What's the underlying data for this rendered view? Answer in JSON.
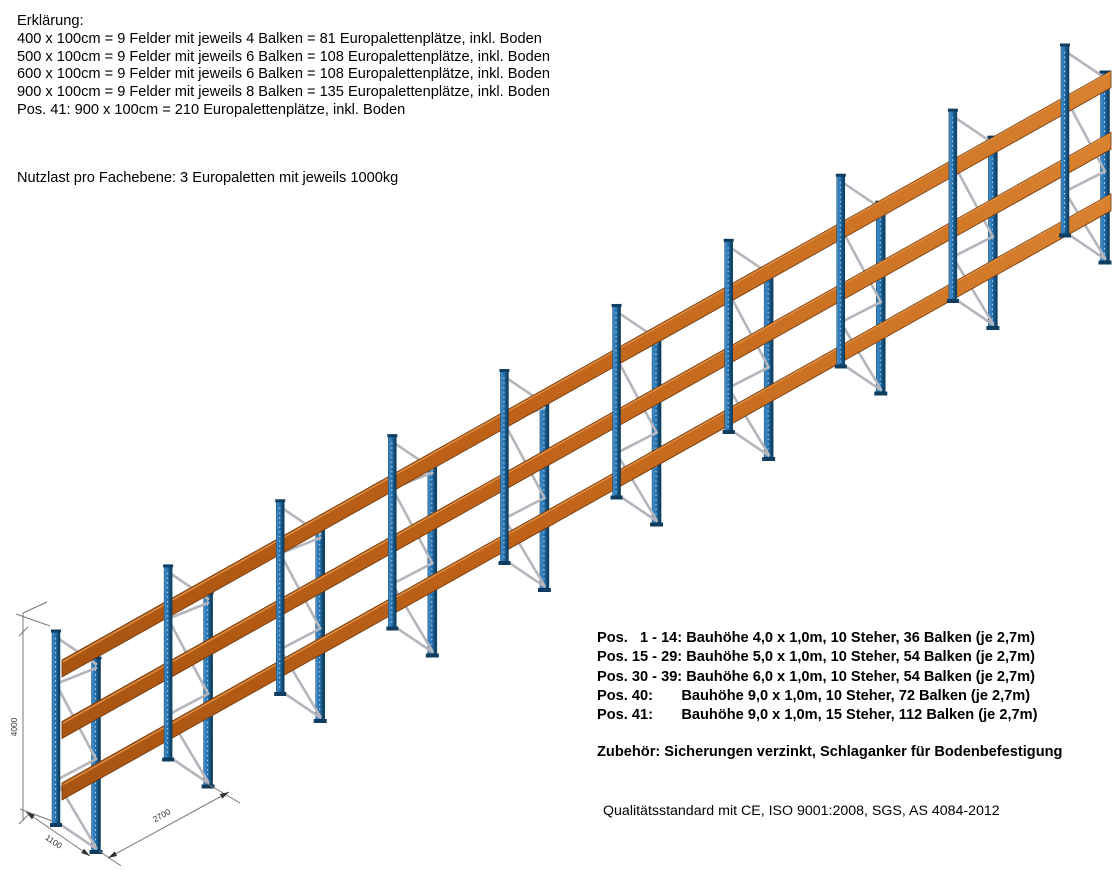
{
  "legend": {
    "title": "Erklärung:",
    "lines": [
      "400 x 100cm = 9 Felder mit jeweils 4 Balken = 81 Europalettenplätze, inkl. Boden",
      "500 x 100cm = 9 Felder mit jeweils 6 Balken = 108 Europalettenplätze, inkl. Boden",
      "600 x 100cm = 9 Felder mit jeweils 6 Balken = 108 Europalettenplätze, inkl. Boden",
      "900 x 100cm = 9 Felder mit jeweils 8 Balken = 135 Europalettenplätze, inkl. Boden",
      "Pos. 41: 900 x 100cm = 210 Europalettenplätze, inkl. Boden"
    ],
    "payload_note": "Nutzlast pro Fachebene: 3 Europaletten mit jeweils 1000kg"
  },
  "positions": {
    "lines": [
      "Pos.   1 - 14: Bauhöhe 4,0 x 1,0m, 10 Steher, 36 Balken (je 2,7m)",
      "Pos. 15 - 29: Bauhöhe 5,0 x 1,0m, 10 Steher, 54 Balken (je 2,7m)",
      "Pos. 30 - 39: Bauhöhe 6,0 x 1,0m, 10 Steher, 54 Balken (je 2,7m)",
      "Pos. 40:       Bauhöhe 9,0 x 1,0m, 10 Steher, 72 Balken (je 2,7m)",
      "Pos. 41:       Bauhöhe 9,0 x 1,0m, 15 Steher, 112 Balken (je 2,7m)"
    ],
    "accessories_note": "Zubehör: Sicherungen verzinkt, Schlaganker für Bodenbefestigung",
    "quality_note": "Qualitätsstandard mit CE, ISO 9001:2008, SGS, AS 4084-2012"
  },
  "diagram": {
    "frames": 10,
    "beam_levels": 3,
    "dim_height": "4000",
    "dim_depth": "1100",
    "dim_bay": "2700",
    "colors": {
      "post_light": "#4a90c9",
      "post_mid": "#2273b2",
      "post_dark": "#114469",
      "post_edge": "#0f3d5f",
      "post_rivet": "#cfe2f3",
      "beam_light": "#d9822f",
      "beam_mid": "#c06318",
      "beam_dark": "#a85412",
      "beam_edge": "#6e3608",
      "beam_highlight": "#de8f45",
      "brace": "#b5b5bd",
      "dim_line": "#787878",
      "dim_text": "#333333"
    }
  }
}
